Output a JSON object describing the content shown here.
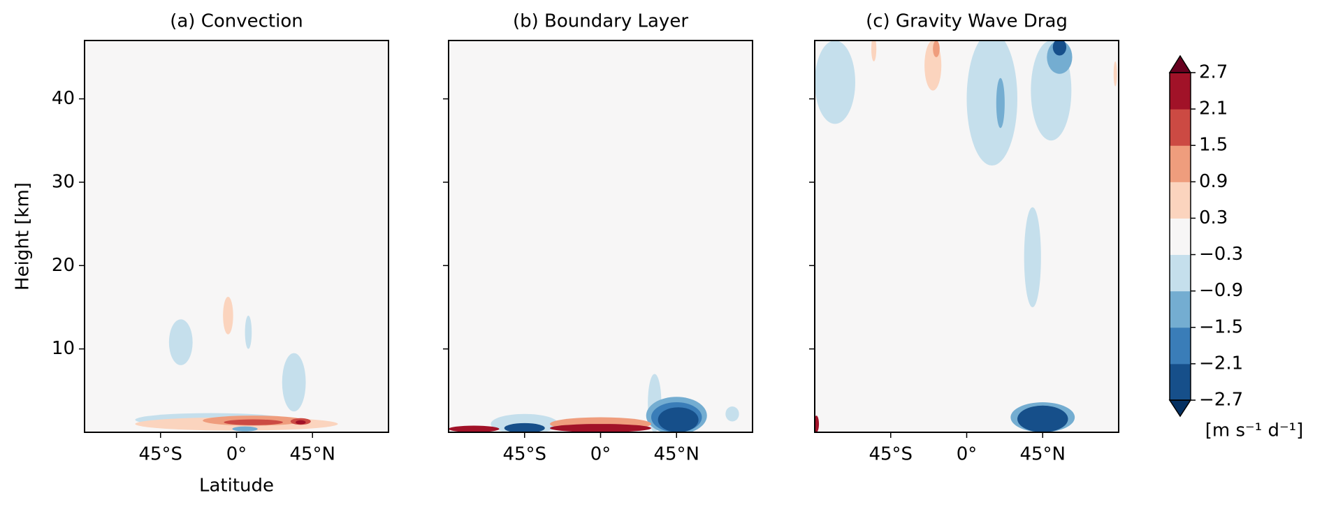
{
  "chart_data": [
    {
      "type": "contour",
      "title": "(a) Convection",
      "xlabel": "Latitude",
      "ylabel": "Height [km]",
      "xlim": [
        -90,
        90
      ],
      "ylim": [
        0,
        47
      ],
      "xticks": [
        {
          "value": -45,
          "label": "45°S"
        },
        {
          "value": 0,
          "label": "0°"
        },
        {
          "value": 45,
          "label": "45°N"
        }
      ],
      "yticks": [
        10,
        20,
        30,
        40
      ],
      "regions": [
        {
          "lat": -15,
          "height": 1.5,
          "lat_span": 90,
          "height_span": 1.6,
          "value": -0.6
        },
        {
          "lat": 0,
          "height": 1,
          "lat_span": 120,
          "height_span": 1.6,
          "value": 0.6
        },
        {
          "lat": 10,
          "height": 1.4,
          "lat_span": 60,
          "height_span": 1.2,
          "value": 1.2
        },
        {
          "lat": 10,
          "height": 1.2,
          "lat_span": 35,
          "height_span": 0.7,
          "value": 1.8
        },
        {
          "lat": 38,
          "height": 1.3,
          "lat_span": 12,
          "height_span": 0.8,
          "value": 1.8
        },
        {
          "lat": 38,
          "height": 1.2,
          "lat_span": 6,
          "height_span": 0.5,
          "value": 2.4
        },
        {
          "lat": 5,
          "height": 0.4,
          "lat_span": 15,
          "height_span": 0.6,
          "value": -1.2
        },
        {
          "lat": -5,
          "height": 14,
          "lat_span": 6,
          "height_span": 4.5,
          "value": 0.6
        },
        {
          "lat": -33,
          "height": 10.8,
          "lat_span": 14,
          "height_span": 5.5,
          "value": -0.6
        },
        {
          "lat": 7,
          "height": 12,
          "lat_span": 4,
          "height_span": 4,
          "value": -0.6
        },
        {
          "lat": 34,
          "height": 6,
          "lat_span": 14,
          "height_span": 7,
          "value": -0.6
        }
      ]
    },
    {
      "type": "contour",
      "title": "(b) Boundary Layer",
      "xlim": [
        -90,
        90
      ],
      "ylim": [
        0,
        47
      ],
      "xticks": [
        {
          "value": -45,
          "label": "45°S"
        },
        {
          "value": 0,
          "label": "0°"
        },
        {
          "value": 45,
          "label": "45°N"
        }
      ],
      "yticks": [
        10,
        20,
        30,
        40
      ],
      "regions": [
        {
          "lat": 32,
          "height": 3.5,
          "lat_span": 8,
          "height_span": 7,
          "value": -0.6
        },
        {
          "lat": 45,
          "height": 2,
          "lat_span": 36,
          "height_span": 4.5,
          "value": -1.2
        },
        {
          "lat": 45,
          "height": 1.8,
          "lat_span": 30,
          "height_span": 3.6,
          "value": -1.8
        },
        {
          "lat": 46,
          "height": 1.5,
          "lat_span": 24,
          "height_span": 3,
          "value": -2.4
        },
        {
          "lat": -45,
          "height": 1,
          "lat_span": 40,
          "height_span": 2.4,
          "value": -0.6
        },
        {
          "lat": -45,
          "height": 0.5,
          "lat_span": 24,
          "height_span": 1.2,
          "value": -2.4
        },
        {
          "lat": -75,
          "height": 0.4,
          "lat_span": 30,
          "height_span": 0.8,
          "value": 2.4
        },
        {
          "lat": 0,
          "height": 1,
          "lat_span": 60,
          "height_span": 1.6,
          "value": 1.2
        },
        {
          "lat": 0,
          "height": 0.5,
          "lat_span": 60,
          "height_span": 1,
          "value": 2.4
        },
        {
          "lat": 78,
          "height": 2.2,
          "lat_span": 8,
          "height_span": 1.8,
          "value": -0.6
        }
      ]
    },
    {
      "type": "contour",
      "title": "(c) Gravity Wave Drag",
      "xlim": [
        -90,
        90
      ],
      "ylim": [
        0,
        47
      ],
      "xticks": [
        {
          "value": -45,
          "label": "45°S"
        },
        {
          "value": 0,
          "label": "0°"
        },
        {
          "value": 45,
          "label": "45°N"
        }
      ],
      "yticks": [
        10,
        20,
        30,
        40
      ],
      "regions": [
        {
          "lat": -78,
          "height": 42,
          "lat_span": 24,
          "height_span": 10,
          "value": -0.6
        },
        {
          "lat": 15,
          "height": 40,
          "lat_span": 30,
          "height_span": 16,
          "value": -0.6
        },
        {
          "lat": 50,
          "height": 41,
          "lat_span": 24,
          "height_span": 12,
          "value": -0.6
        },
        {
          "lat": 20,
          "height": 39.5,
          "lat_span": 5,
          "height_span": 6,
          "value": -1.2
        },
        {
          "lat": 55,
          "height": 45,
          "lat_span": 15,
          "height_span": 4,
          "value": -1.2
        },
        {
          "lat": 55,
          "height": 46.2,
          "lat_span": 8,
          "height_span": 2,
          "value": -2.4
        },
        {
          "lat": -20,
          "height": 44,
          "lat_span": 10,
          "height_span": 6,
          "value": 0.6
        },
        {
          "lat": -18,
          "height": 46,
          "lat_span": 4,
          "height_span": 2,
          "value": 1.2
        },
        {
          "lat": -55,
          "height": 46,
          "lat_span": 3,
          "height_span": 3,
          "value": 0.6
        },
        {
          "lat": 88,
          "height": 43,
          "lat_span": 2,
          "height_span": 3,
          "value": 0.6
        },
        {
          "lat": 39,
          "height": 21,
          "lat_span": 10,
          "height_span": 12,
          "value": -0.6
        },
        {
          "lat": 45,
          "height": 1.8,
          "lat_span": 38,
          "height_span": 3.6,
          "value": -1.2
        },
        {
          "lat": 45,
          "height": 1.6,
          "lat_span": 30,
          "height_span": 3.2,
          "value": -2.4
        },
        {
          "lat": -89,
          "height": 1,
          "lat_span": 3,
          "height_span": 2,
          "value": 2.4
        }
      ]
    }
  ],
  "colorbar": {
    "label": "[m s⁻¹ d⁻¹]",
    "ticks": [
      {
        "value": -2.7,
        "label": "−2.7"
      },
      {
        "value": -2.1,
        "label": "−2.1"
      },
      {
        "value": -1.5,
        "label": "−1.5"
      },
      {
        "value": -0.9,
        "label": "−0.9"
      },
      {
        "value": -0.3,
        "label": "−0.3"
      },
      0.3,
      0.9,
      1.5,
      2.1,
      2.7
    ],
    "colors": [
      "#164f8a",
      "#3a7db8",
      "#74add1",
      "#c5dfec",
      "#f7f6f6",
      "#fbd4be",
      "#ef9d7d",
      "#cc4a43",
      "#a11228"
    ],
    "extend_colors": [
      "#053061",
      "#67001f"
    ]
  }
}
